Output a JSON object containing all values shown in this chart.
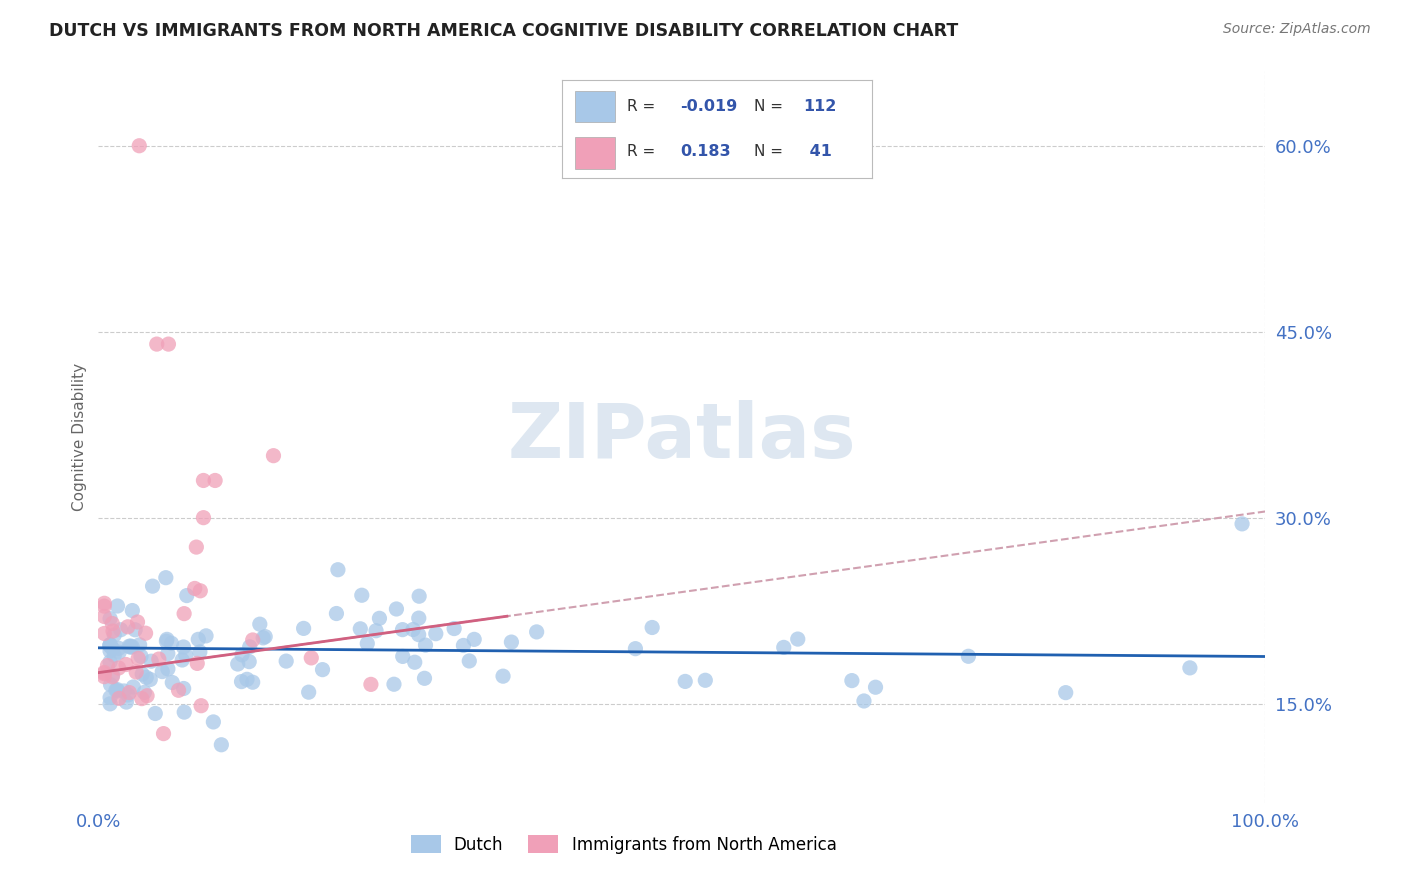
{
  "title": "DUTCH VS IMMIGRANTS FROM NORTH AMERICA COGNITIVE DISABILITY CORRELATION CHART",
  "source": "Source: ZipAtlas.com",
  "ylabel": "Cognitive Disability",
  "xlim": [
    0.0,
    1.0
  ],
  "ylim": [
    0.07,
    0.66
  ],
  "yticks": [
    0.15,
    0.3,
    0.45,
    0.6
  ],
  "ytick_labels": [
    "15.0%",
    "30.0%",
    "45.0%",
    "60.0%"
  ],
  "xtick_labels": [
    "0.0%",
    "100.0%"
  ],
  "dutch_R": -0.019,
  "dutch_N": 112,
  "immigrant_R": 0.183,
  "immigrant_N": 41,
  "dutch_color": "#a8c8e8",
  "dutch_line_color": "#2060b0",
  "immigrant_color": "#f0a0b8",
  "immigrant_line_color": "#d06080",
  "immigrant_trend_color": "#d0a0b0",
  "background_color": "#ffffff",
  "grid_color": "#cccccc",
  "axis_label_color": "#666666",
  "tick_color": "#4472c4",
  "legend_R_color": "#3355aa",
  "legend_N_color": "#3355aa",
  "watermark_color": "#c8d8e8",
  "dutch_line_y0": 0.195,
  "dutch_line_y1": 0.188,
  "immig_line_y0": 0.175,
  "immig_line_y1": 0.305
}
